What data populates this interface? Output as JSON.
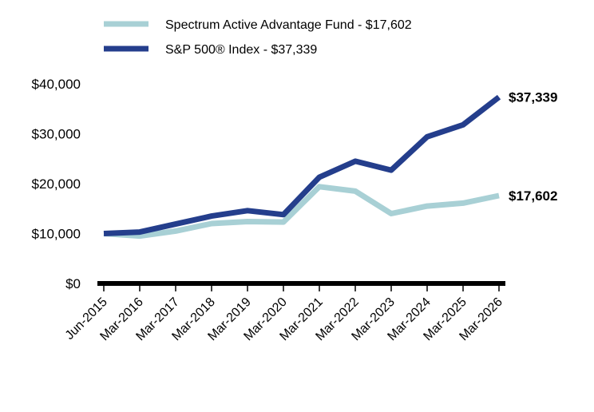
{
  "chart_data": {
    "type": "line",
    "x": [
      "Jun-2015",
      "Mar-2016",
      "Mar-2017",
      "Mar-2018",
      "Mar-2019",
      "Mar-2020",
      "Mar-2021",
      "Mar-2022",
      "Mar-2023",
      "Mar-2024",
      "Mar-2025",
      "Mar-2026"
    ],
    "series": [
      {
        "name": "Spectrum Active Advantage Fund - $17,602",
        "color": "#a8d0d5",
        "values": [
          10000,
          9500,
          10500,
          12000,
          12400,
          12300,
          19400,
          18500,
          14000,
          15500,
          16100,
          17602
        ],
        "end_label": "$17,602"
      },
      {
        "name": "S&P 500® Index - $37,339",
        "color": "#243e8c",
        "values": [
          10000,
          10300,
          11900,
          13500,
          14600,
          13800,
          21300,
          24500,
          22700,
          29400,
          31800,
          37339
        ],
        "end_label": "$37,339"
      }
    ],
    "yticks": [
      "$0",
      "$10,000",
      "$20,000",
      "$30,000",
      "$40,000"
    ],
    "ylim": [
      0,
      40000
    ],
    "legend_position": "top-left",
    "grid": false
  }
}
